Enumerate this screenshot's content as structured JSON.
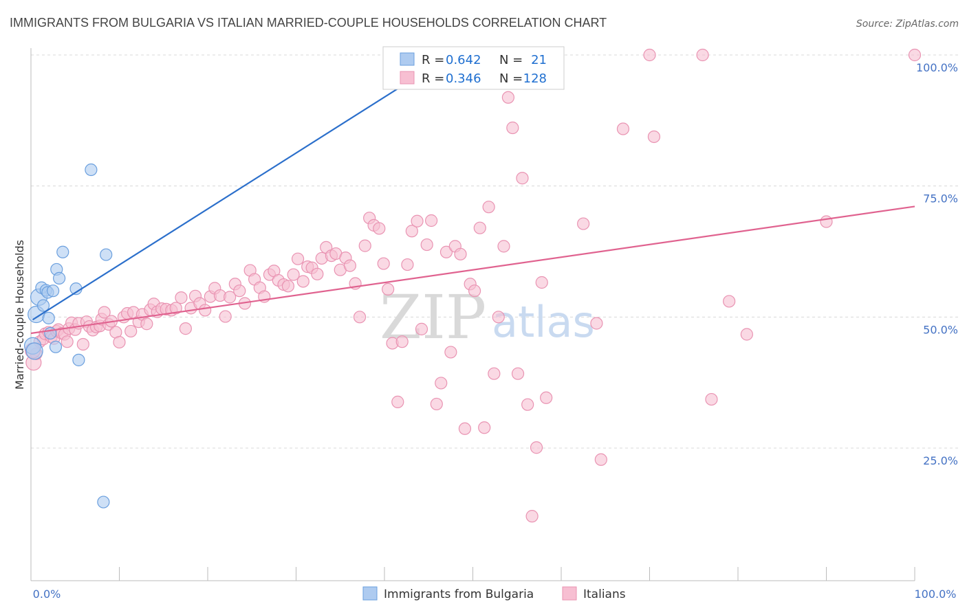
{
  "title": "IMMIGRANTS FROM BULGARIA VS ITALIAN MARRIED-COUPLE HOUSEHOLDS CORRELATION CHART",
  "source": "Source: ZipAtlas.com",
  "watermark": {
    "zip": "ZIP",
    "atlas": "atlas"
  },
  "legend": {
    "rows": [
      {
        "r_label": "R =",
        "r_value": "0.642",
        "n_label": "N =",
        "n_value": "21"
      },
      {
        "r_label": "R =",
        "r_value": "0.346",
        "n_label": "N =",
        "n_value": "128"
      }
    ]
  },
  "colors": {
    "blue_fill": "#aecbf0",
    "blue_stroke": "#6a9fde",
    "blue_line": "#2b6fcb",
    "pink_fill": "#f7bfd2",
    "pink_stroke": "#e993b2",
    "pink_line": "#e0628f",
    "tick_text": "#4472c4",
    "grid": "#d8d8d8"
  },
  "chart_data": {
    "type": "scatter",
    "title": "IMMIGRANTS FROM BULGARIA VS ITALIAN MARRIED-COUPLE HOUSEHOLDS CORRELATION CHART",
    "xlabel": "",
    "ylabel": "Married-couple Households",
    "xlim": [
      0,
      100
    ],
    "ylim": [
      0,
      103
    ],
    "x_tick_labels": [
      "0.0%",
      "100.0%"
    ],
    "y_ticks": [
      {
        "value": 25,
        "label": "25.0%"
      },
      {
        "value": 50,
        "label": "50.0%"
      },
      {
        "value": 75,
        "label": "75.0%"
      },
      {
        "value": 100,
        "label": "100.0%"
      }
    ],
    "grid": "horizontal dashed",
    "legend_position": "top-center",
    "series": [
      {
        "name": "Immigrants from Bulgaria",
        "color": "#aecbf0",
        "trend": {
          "x": [
            0.2,
            48
          ],
          "y": [
            49.5,
            100.5
          ]
        },
        "points": [
          [
            0.2,
            44.5
          ],
          [
            0.4,
            43.5
          ],
          [
            0.6,
            50.5
          ],
          [
            0.9,
            53.8
          ],
          [
            1.2,
            55.6
          ],
          [
            1.4,
            52.2
          ],
          [
            1.7,
            55.1
          ],
          [
            1.9,
            54.7
          ],
          [
            2.0,
            49.8
          ],
          [
            2.2,
            46.9
          ],
          [
            2.5,
            55.0
          ],
          [
            2.8,
            44.3
          ],
          [
            2.9,
            59.1
          ],
          [
            3.2,
            57.4
          ],
          [
            3.6,
            62.4
          ],
          [
            5.1,
            55.4
          ],
          [
            5.4,
            41.8
          ],
          [
            6.8,
            78.1
          ],
          [
            8.2,
            14.7
          ],
          [
            8.5,
            61.9
          ],
          [
            47.5,
            100.0
          ]
        ]
      },
      {
        "name": "Italians",
        "color": "#f7bfd2",
        "trend": {
          "x": [
            0,
            100
          ],
          "y": [
            46.9,
            71.1
          ]
        },
        "points": [
          [
            0.3,
            41.3
          ],
          [
            0.6,
            43.0
          ],
          [
            1.0,
            45.3
          ],
          [
            1.4,
            45.8
          ],
          [
            1.6,
            46.8
          ],
          [
            2.0,
            47.1
          ],
          [
            2.3,
            46.2
          ],
          [
            2.6,
            45.9
          ],
          [
            2.9,
            47.3
          ],
          [
            3.1,
            47.6
          ],
          [
            3.5,
            46.9
          ],
          [
            3.8,
            46.7
          ],
          [
            4.1,
            45.3
          ],
          [
            4.3,
            47.8
          ],
          [
            4.6,
            48.9
          ],
          [
            5.0,
            47.6
          ],
          [
            5.4,
            48.8
          ],
          [
            5.9,
            44.8
          ],
          [
            6.3,
            49.1
          ],
          [
            6.6,
            48.2
          ],
          [
            7.0,
            47.5
          ],
          [
            7.4,
            48.1
          ],
          [
            7.8,
            48.3
          ],
          [
            8.0,
            49.6
          ],
          [
            8.3,
            50.9
          ],
          [
            8.8,
            48.6
          ],
          [
            9.1,
            49.2
          ],
          [
            9.6,
            47.1
          ],
          [
            10.0,
            45.2
          ],
          [
            10.5,
            50.0
          ],
          [
            10.9,
            50.7
          ],
          [
            11.3,
            47.3
          ],
          [
            11.6,
            50.9
          ],
          [
            12.2,
            49.1
          ],
          [
            12.6,
            50.5
          ],
          [
            13.1,
            48.7
          ],
          [
            13.5,
            51.4
          ],
          [
            13.9,
            52.5
          ],
          [
            14.3,
            51.0
          ],
          [
            14.8,
            51.6
          ],
          [
            15.3,
            51.5
          ],
          [
            15.9,
            51.3
          ],
          [
            16.4,
            51.7
          ],
          [
            17.0,
            53.7
          ],
          [
            17.5,
            47.8
          ],
          [
            18.1,
            51.7
          ],
          [
            18.6,
            54.0
          ],
          [
            19.1,
            52.6
          ],
          [
            19.7,
            51.3
          ],
          [
            20.3,
            53.9
          ],
          [
            20.8,
            55.5
          ],
          [
            21.4,
            54.1
          ],
          [
            22.0,
            50.1
          ],
          [
            22.5,
            53.8
          ],
          [
            23.1,
            56.3
          ],
          [
            23.6,
            55.0
          ],
          [
            24.2,
            52.6
          ],
          [
            24.8,
            58.9
          ],
          [
            25.3,
            57.2
          ],
          [
            25.9,
            55.6
          ],
          [
            26.4,
            53.9
          ],
          [
            27.0,
            58.1
          ],
          [
            27.5,
            58.8
          ],
          [
            28.0,
            57.0
          ],
          [
            28.6,
            56.2
          ],
          [
            29.1,
            55.9
          ],
          [
            29.7,
            58.1
          ],
          [
            30.2,
            61.1
          ],
          [
            30.8,
            56.8
          ],
          [
            31.3,
            59.6
          ],
          [
            31.8,
            59.4
          ],
          [
            32.4,
            58.2
          ],
          [
            32.9,
            61.2
          ],
          [
            33.4,
            63.3
          ],
          [
            34.0,
            61.7
          ],
          [
            34.5,
            62.1
          ],
          [
            35.0,
            59.0
          ],
          [
            35.6,
            61.3
          ],
          [
            36.1,
            59.8
          ],
          [
            36.7,
            56.4
          ],
          [
            37.2,
            50.0
          ],
          [
            37.8,
            63.6
          ],
          [
            38.3,
            68.9
          ],
          [
            38.8,
            67.5
          ],
          [
            39.4,
            66.9
          ],
          [
            39.9,
            60.2
          ],
          [
            40.4,
            55.3
          ],
          [
            40.9,
            45.0
          ],
          [
            41.5,
            33.8
          ],
          [
            42.0,
            45.3
          ],
          [
            42.6,
            60.0
          ],
          [
            43.1,
            66.4
          ],
          [
            43.7,
            68.3
          ],
          [
            44.2,
            47.7
          ],
          [
            44.8,
            63.8
          ],
          [
            45.3,
            68.4
          ],
          [
            45.9,
            33.4
          ],
          [
            46.4,
            37.4
          ],
          [
            47.0,
            62.4
          ],
          [
            47.5,
            43.3
          ],
          [
            48.0,
            63.5
          ],
          [
            48.6,
            62.0
          ],
          [
            49.1,
            28.7
          ],
          [
            49.7,
            56.3
          ],
          [
            50.2,
            55.0
          ],
          [
            50.8,
            67.0
          ],
          [
            51.3,
            28.9
          ],
          [
            51.8,
            71.0
          ],
          [
            52.4,
            39.2
          ],
          [
            52.9,
            50.0
          ],
          [
            53.5,
            63.5
          ],
          [
            54.0,
            91.9
          ],
          [
            54.5,
            86.1
          ],
          [
            55.1,
            39.2
          ],
          [
            55.6,
            76.5
          ],
          [
            56.2,
            33.3
          ],
          [
            56.7,
            12.0
          ],
          [
            57.2,
            25.1
          ],
          [
            57.8,
            56.6
          ],
          [
            58.3,
            34.6
          ],
          [
            62.5,
            67.8
          ],
          [
            64.0,
            48.8
          ],
          [
            64.5,
            22.8
          ],
          [
            67.0,
            85.9
          ],
          [
            70.0,
            100.0
          ],
          [
            70.5,
            84.4
          ],
          [
            76.0,
            100.0
          ],
          [
            77.0,
            34.3
          ],
          [
            79.0,
            53.0
          ],
          [
            81.0,
            46.7
          ],
          [
            90.0,
            68.2
          ],
          [
            100.0,
            100.0
          ],
          [
            0.2,
            43.6
          ]
        ]
      }
    ]
  }
}
